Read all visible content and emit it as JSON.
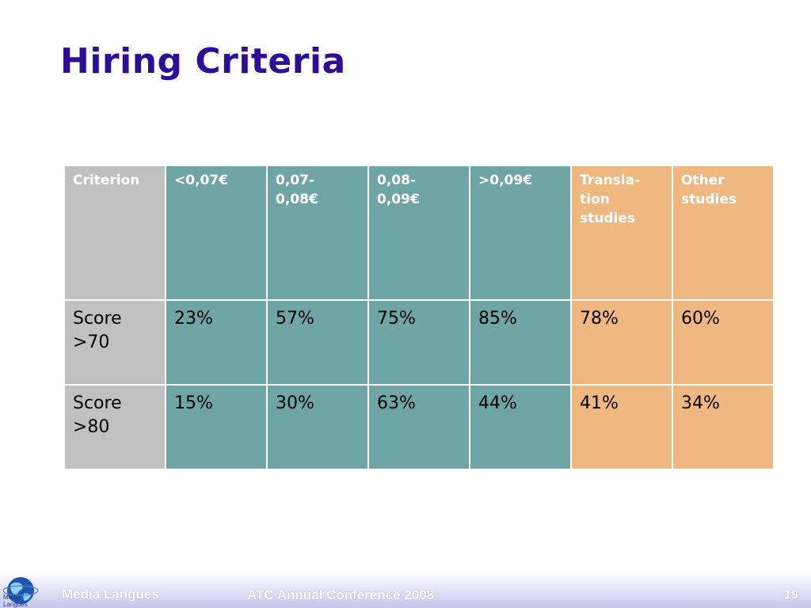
{
  "slide": {
    "title": "Hiring Criteria"
  },
  "table": {
    "headers": [
      [
        "Criterion"
      ],
      [
        "<0,07€"
      ],
      [
        "0,07-",
        "0,08€"
      ],
      [
        "0,08-",
        "0,09€"
      ],
      [
        ">0,09€"
      ],
      [
        "Transla-",
        "tion",
        "studies"
      ],
      [
        "Other",
        "studies"
      ]
    ],
    "rows": [
      {
        "label": [
          "Score",
          ">70"
        ],
        "values": [
          "23%",
          "57%",
          "75%",
          "85%",
          "78%",
          "60%"
        ]
      },
      {
        "label": [
          "Score",
          ">80"
        ],
        "values": [
          "15%",
          "30%",
          "63%",
          "44%",
          "41%",
          "34%"
        ]
      }
    ],
    "colors": {
      "criterion": "#c0c0c0",
      "price": "#70a5a5",
      "studies": "#eeb880"
    }
  },
  "footer": {
    "logo_text": [
      "Media",
      "Langues"
    ],
    "brand": "Media Langues",
    "conference": "ATC Annual Conference 2008",
    "page_number": "19"
  }
}
